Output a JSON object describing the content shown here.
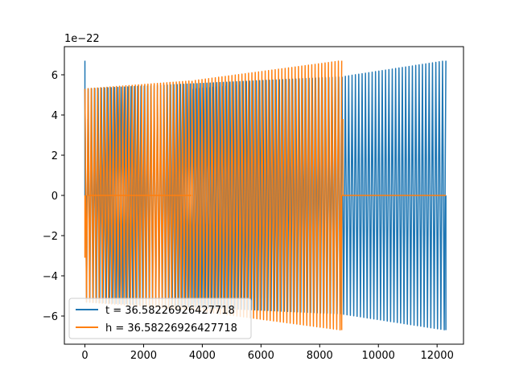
{
  "chart_data": {
    "type": "line",
    "title": "",
    "xlabel": "",
    "ylabel": "",
    "y_offset_label": "1e−22",
    "xlim": [
      -700,
      12900
    ],
    "ylim": [
      -7.4,
      7.4
    ],
    "x_ticks": [
      0,
      2000,
      4000,
      6000,
      8000,
      10000,
      12000
    ],
    "x_tick_labels": [
      "0",
      "2000",
      "4000",
      "6000",
      "8000",
      "10000",
      "12000"
    ],
    "y_ticks": [
      -6,
      -4,
      -2,
      0,
      2,
      4,
      6
    ],
    "y_tick_labels": [
      "−6",
      "−4",
      "−2",
      "0",
      "2",
      "4",
      "6"
    ],
    "grid": false,
    "legend_position": "lower-left",
    "series": [
      {
        "name": "t = 36.58226926427718",
        "color": "#1f77b4",
        "segments": [
          {
            "x": [
              0,
              8760
            ],
            "amp_start": 5.3,
            "amp_end": 5.9,
            "cycles": 78
          },
          {
            "x": [
              3660,
              8760
            ],
            "amp_start": 5.3,
            "amp_end": 5.9,
            "cycles": 45
          },
          {
            "x": [
              8760,
              12300
            ],
            "amp_start": 5.9,
            "amp_end": 6.7,
            "cycles": 31
          }
        ],
        "spikes": [
          {
            "x": 0,
            "y": 6.7
          },
          {
            "x": 60,
            "y": -3.1
          },
          {
            "x": 100,
            "y": 3.8
          },
          {
            "x": 12300,
            "y": -6.7
          }
        ]
      },
      {
        "name": "h = 36.58226926427718",
        "color": "#ff7f0e",
        "segments": [
          {
            "x": [
              0,
              3650
            ],
            "amp_start": 5.3,
            "amp_end": 5.7,
            "cycles": 34
          },
          {
            "x": [
              3650,
              8750
            ],
            "amp_start": 5.7,
            "amp_end": 6.7,
            "cycles": 45
          }
        ],
        "zero_segments": [
          [
            100,
            3650
          ],
          [
            8750,
            12300
          ]
        ],
        "spikes": [
          {
            "x": 0,
            "y": -3.1
          },
          {
            "x": 8750,
            "y": -6.7
          },
          {
            "x": 8790,
            "y": 3.8
          }
        ]
      }
    ]
  }
}
